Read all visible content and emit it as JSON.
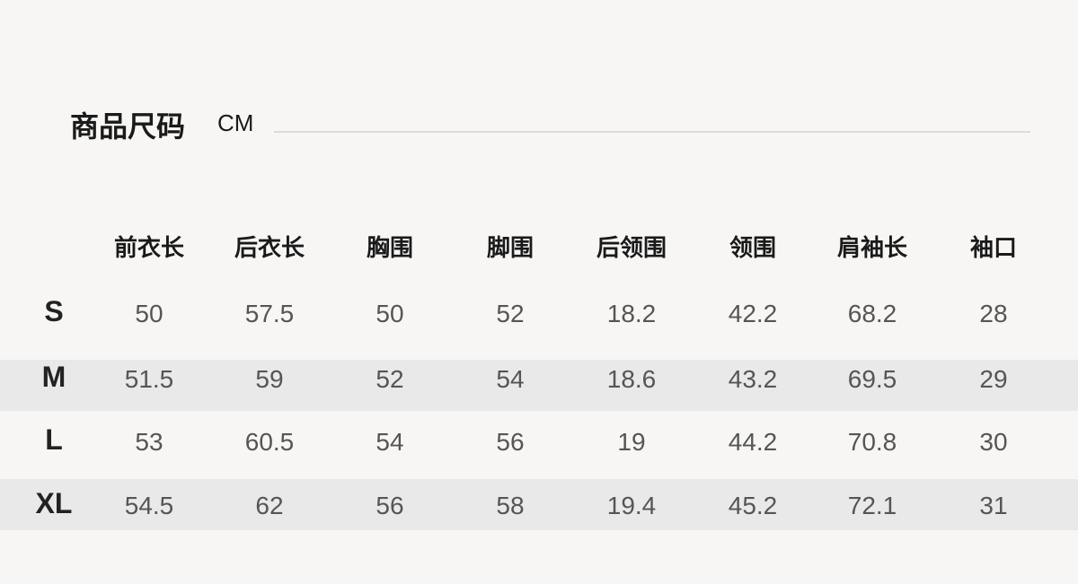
{
  "title": "商品尺码",
  "unit": "CM",
  "colors": {
    "background": "#f7f6f4",
    "stripe": "#e9e9e9",
    "rule": "#dcdcdc"
  },
  "columns": [
    "前衣长",
    "后衣长",
    "胸围",
    "脚围",
    "后领围",
    "领围",
    "肩袖长",
    "袖口"
  ],
  "rows": [
    {
      "size": "S",
      "values": [
        "50",
        "57.5",
        "50",
        "52",
        "18.2",
        "42.2",
        "68.2",
        "28"
      ]
    },
    {
      "size": "M",
      "values": [
        "51.5",
        "59",
        "52",
        "54",
        "18.6",
        "43.2",
        "69.5",
        "29"
      ]
    },
    {
      "size": "L",
      "values": [
        "53",
        "60.5",
        "54",
        "56",
        "19",
        "44.2",
        "70.8",
        "30"
      ]
    },
    {
      "size": "XL",
      "values": [
        "54.5",
        "62",
        "56",
        "58",
        "19.4",
        "45.2",
        "72.1",
        "31"
      ]
    }
  ]
}
